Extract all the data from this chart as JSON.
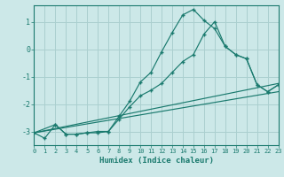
{
  "xlabel": "Humidex (Indice chaleur)",
  "background_color": "#cce8e8",
  "grid_color": "#aacfcf",
  "line_color": "#1a7a6e",
  "xlim": [
    0,
    23
  ],
  "ylim": [
    -3.5,
    1.6
  ],
  "yticks": [
    -3,
    -2,
    -1,
    0,
    1
  ],
  "xticks": [
    0,
    1,
    2,
    3,
    4,
    5,
    6,
    7,
    8,
    9,
    10,
    11,
    12,
    13,
    14,
    15,
    16,
    17,
    18,
    19,
    20,
    21,
    22,
    23
  ],
  "line1_x": [
    0,
    1,
    2,
    3,
    4,
    5,
    6,
    7,
    8,
    9,
    10,
    11,
    12,
    13,
    14,
    15,
    16,
    17,
    18,
    19,
    20,
    21,
    22,
    23
  ],
  "line1_y": [
    -3.05,
    -3.25,
    -2.75,
    -3.1,
    -3.1,
    -3.05,
    -3.05,
    -3.0,
    -2.45,
    -1.9,
    -1.2,
    -0.85,
    -0.1,
    0.6,
    1.25,
    1.45,
    1.05,
    0.75,
    0.1,
    -0.2,
    -0.35,
    -1.3,
    -1.55,
    -1.3
  ],
  "line2_x": [
    0,
    2,
    3,
    4,
    5,
    6,
    7,
    8,
    9,
    10,
    11,
    12,
    13,
    14,
    15,
    16,
    17,
    18,
    19,
    20,
    21,
    22,
    23
  ],
  "line2_y": [
    -3.05,
    -2.75,
    -3.1,
    -3.1,
    -3.05,
    -3.0,
    -3.0,
    -2.55,
    -2.1,
    -1.7,
    -1.5,
    -1.25,
    -0.85,
    -0.45,
    -0.2,
    0.55,
    1.0,
    0.1,
    -0.2,
    -0.35,
    -1.3,
    -1.55,
    -1.3
  ],
  "line3_x": [
    0,
    23
  ],
  "line3_y": [
    -3.05,
    -1.25
  ],
  "line4_x": [
    0,
    23
  ],
  "line4_y": [
    -3.05,
    -1.55
  ]
}
